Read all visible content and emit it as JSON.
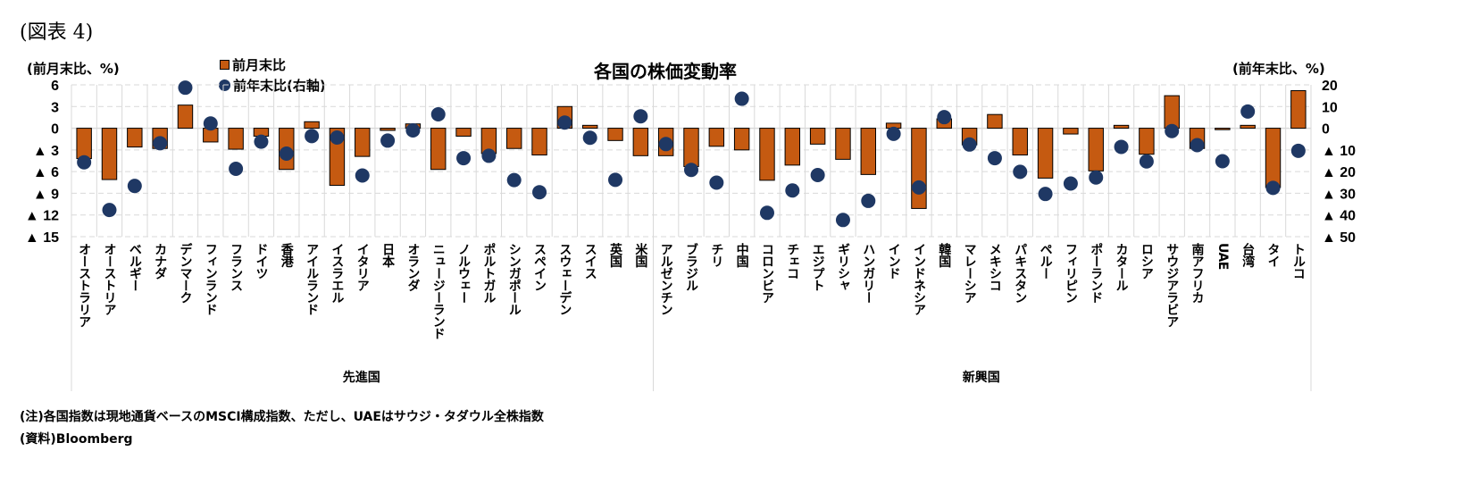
{
  "figure_label": "(図表 4)",
  "chart_data": {
    "type": "bar",
    "title": "各国の株価変動率",
    "ylabel_left": "(前月末比、%)",
    "ylabel_right": "(前年末比、%)",
    "ylim_left": [
      -15,
      6
    ],
    "ylim_right": [
      -50,
      20
    ],
    "yticks_left": [
      {
        "value": 6,
        "label": "6"
      },
      {
        "value": 3,
        "label": "3"
      },
      {
        "value": 0,
        "label": "0"
      },
      {
        "value": -3,
        "label": "▲ 3"
      },
      {
        "value": -6,
        "label": "▲ 6"
      },
      {
        "value": -9,
        "label": "▲ 9"
      },
      {
        "value": -12,
        "label": "▲ 12"
      },
      {
        "value": -15,
        "label": "▲ 15"
      }
    ],
    "yticks_right": [
      {
        "value": 20,
        "label": "20"
      },
      {
        "value": 10,
        "label": "10"
      },
      {
        "value": 0,
        "label": "0"
      },
      {
        "value": -10,
        "label": "▲ 10"
      },
      {
        "value": -20,
        "label": "▲ 20"
      },
      {
        "value": -30,
        "label": "▲ 30"
      },
      {
        "value": -40,
        "label": "▲ 40"
      },
      {
        "value": -50,
        "label": "▲ 50"
      }
    ],
    "grid": true,
    "legend_placement": "top-left",
    "groups": [
      {
        "name": "先進国",
        "count": 23
      },
      {
        "name": "新興国",
        "count": 26
      }
    ],
    "categories": [
      "オーストラリア",
      "オーストリア",
      "ベルギー",
      "カナダ",
      "デンマーク",
      "フィンランド",
      "フランス",
      "ドイツ",
      "香港",
      "アイルランド",
      "イスラエル",
      "イタリア",
      "日本",
      "オランダ",
      "ニュージーランド",
      "ノルウェー",
      "ポルトガル",
      "シンガポール",
      "スペイン",
      "スウェーデン",
      "スイス",
      "英国",
      "米国",
      "アルゼンチン",
      "ブラジル",
      "チリ",
      "中国",
      "コロンビア",
      "チェコ",
      "エジプト",
      "ギリシャ",
      "ハンガリー",
      "インド",
      "インドネシア",
      "韓国",
      "マレーシア",
      "メキシコ",
      "パキスタン",
      "ペルー",
      "フィリピン",
      "ポーランド",
      "カタール",
      "ロシア",
      "サウジアラビア",
      "南アフリカ",
      "UAE",
      "台湾",
      "タイ",
      "トルコ"
    ],
    "series": [
      {
        "name": "前月末比",
        "type": "bar",
        "axis": "left",
        "color": "#C55A11",
        "values": [
          -4.2,
          -7.1,
          -2.6,
          -2.8,
          3.2,
          -1.9,
          -2.9,
          -1.1,
          -5.7,
          0.9,
          -7.9,
          -3.9,
          -0.3,
          0.6,
          -5.7,
          -1.1,
          -3.5,
          -2.8,
          -3.7,
          3.0,
          0.4,
          -1.7,
          -3.8,
          -3.8,
          -5.3,
          -2.5,
          -3.0,
          -7.2,
          -5.1,
          -2.2,
          -4.3,
          -6.4,
          0.7,
          -11.1,
          1.3,
          -2.3,
          1.9,
          -3.7,
          -6.9,
          -0.8,
          -5.9,
          0.4,
          -3.6,
          4.5,
          -2.8,
          -0.2,
          0.4,
          -8.2,
          5.2
        ]
      },
      {
        "name": "前年末比(右軸)",
        "type": "scatter",
        "axis": "right",
        "color": "#1F3864",
        "values": [
          -15.7,
          -37.7,
          -26.6,
          -6.9,
          18.7,
          2.2,
          -18.7,
          -6.2,
          -11.7,
          -3.6,
          -4.3,
          -21.8,
          -5.7,
          -1.0,
          6.4,
          -13.8,
          -12.7,
          -23.9,
          -29.5,
          2.6,
          -4.4,
          -23.8,
          5.5,
          -7.3,
          -19.2,
          -25.1,
          13.6,
          -39.0,
          -28.7,
          -21.6,
          -42.3,
          -33.5,
          -2.6,
          -27.3,
          5.1,
          -7.5,
          -13.8,
          -20.1,
          -30.3,
          -25.5,
          -22.7,
          -8.6,
          -15.3,
          -1.3,
          -7.8,
          -15.2,
          7.7,
          -27.5,
          -10.4
        ]
      }
    ]
  },
  "notes": [
    "(注)各国指数は現地通貨ベースのMSCI構成指数、ただし、UAEはサウジ・タダウル全株指数",
    "(資料)Bloomberg"
  ]
}
